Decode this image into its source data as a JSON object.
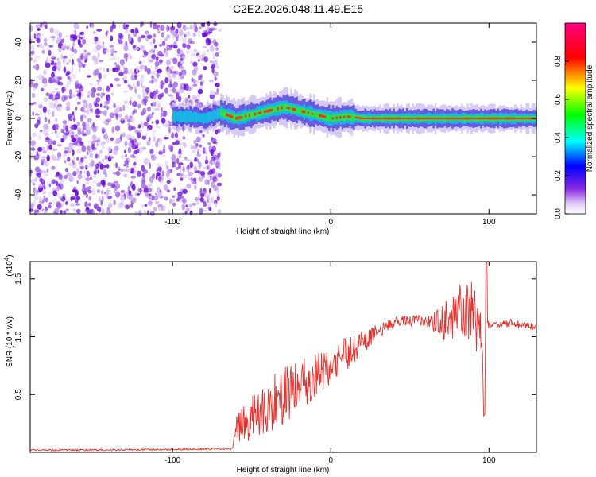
{
  "figure_title": "C2E2.2026.048.11.49.E15",
  "colors": {
    "snr_line": "#e8322e",
    "axis": "#000000",
    "background": "#ffffff"
  },
  "chart_data": [
    {
      "type": "heatmap",
      "name": "spectrogram",
      "title": "C2E2.2026.048.11.49.E15",
      "xlabel": "Height of straight line (km)",
      "ylabel": "Frequency (Hz)",
      "xlim": [
        -190,
        130
      ],
      "ylim": [
        -50,
        50
      ],
      "xticks": [
        -100,
        0,
        100
      ],
      "xtick_labels": [
        "-100",
        "0",
        "100"
      ],
      "yticks": [
        -40,
        -20,
        0,
        20,
        40
      ],
      "ytick_labels": [
        "-40",
        "-20",
        "0",
        "20",
        "40"
      ],
      "noise_region_x": [
        -190,
        -70
      ],
      "signal_onset_km": -70,
      "signal_center_hz": [
        [
          -100,
          1
        ],
        [
          -90,
          1
        ],
        [
          -80,
          0
        ],
        [
          -70,
          3
        ],
        [
          -60,
          0
        ],
        [
          -50,
          2
        ],
        [
          -40,
          4
        ],
        [
          -30,
          6
        ],
        [
          -20,
          4
        ],
        [
          -10,
          2
        ],
        [
          0,
          0
        ],
        [
          10,
          1
        ],
        [
          20,
          0
        ],
        [
          40,
          0
        ],
        [
          60,
          0
        ],
        [
          80,
          0
        ],
        [
          100,
          0
        ],
        [
          130,
          0
        ]
      ],
      "colorbar": {
        "label": "Normalized spectral amplitude",
        "range": [
          0,
          1
        ],
        "ticks": [
          0,
          0.2,
          0.4,
          0.6,
          0.8
        ],
        "tick_labels": [
          "0.0",
          "0.2",
          "0.4",
          "0.6",
          "0.8"
        ],
        "colormap": "rainbow (white-purple-blue-cyan-green-yellow-red-magenta)"
      }
    },
    {
      "type": "line",
      "name": "snr",
      "title": "",
      "xlabel": "Height of straight line (km)",
      "ylabel": "SNR (10 * v/v)",
      "y_multiplier_label": "(x10",
      "y_multiplier_exponent": "4",
      "y_multiplier_close": ")",
      "xlim": [
        -190,
        130
      ],
      "ylim": [
        0,
        1.65
      ],
      "xticks": [
        -100,
        0,
        100
      ],
      "xtick_labels": [
        "-100",
        "0",
        "100"
      ],
      "yticks": [
        0.5,
        1.0,
        1.5
      ],
      "ytick_labels": [
        "0.5",
        "1.0",
        "1.5"
      ],
      "series": [
        {
          "name": "SNR",
          "color": "#e8322e",
          "x": [
            -190,
            -150,
            -100,
            -70,
            -62,
            -60,
            -55,
            -50,
            -45,
            -40,
            -35,
            -30,
            -25,
            -20,
            -15,
            -10,
            -5,
            0,
            5,
            10,
            15,
            20,
            30,
            40,
            45,
            50,
            55,
            60,
            65,
            70,
            75,
            80,
            85,
            90,
            95,
            97,
            98,
            100,
            105,
            110,
            115,
            120,
            125,
            130
          ],
          "values": [
            0.02,
            0.02,
            0.025,
            0.03,
            0.03,
            0.2,
            0.25,
            0.3,
            0.35,
            0.4,
            0.45,
            0.5,
            0.55,
            0.6,
            0.62,
            0.66,
            0.72,
            0.75,
            0.8,
            0.85,
            0.9,
            0.95,
            1.05,
            1.12,
            1.15,
            1.13,
            1.15,
            1.12,
            1.12,
            1.12,
            1.18,
            1.2,
            1.2,
            1.18,
            1.05,
            0.32,
            1.12,
            1.1,
            1.1,
            1.12,
            1.12,
            1.1,
            1.1,
            1.08
          ],
          "spike_amplitude": [
            0,
            0,
            0,
            0,
            0,
            0.12,
            0.15,
            0.2,
            0.22,
            0.25,
            0.25,
            0.25,
            0.25,
            0.22,
            0.2,
            0.2,
            0.18,
            0.15,
            0.15,
            0.15,
            0.12,
            0.1,
            0.06,
            0.04,
            0.04,
            0.04,
            0.05,
            0.06,
            0.1,
            0.15,
            0.2,
            0.25,
            0.25,
            0.3,
            0.3,
            0,
            0.03,
            0.03,
            0.03,
            0.03,
            0.03,
            0.03,
            0.03,
            0.03
          ]
        }
      ]
    }
  ]
}
